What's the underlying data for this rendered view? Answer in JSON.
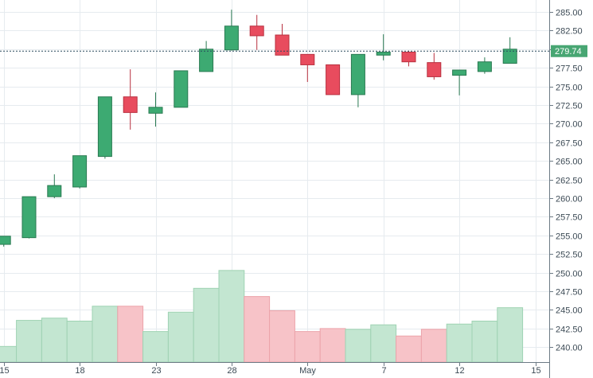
{
  "chart_data": {
    "type": "candlestick",
    "x_tick_labels": [
      "15",
      "18",
      "23",
      "28",
      "May",
      "7",
      "12",
      "15"
    ],
    "y_ticks": [
      "240.00",
      "242.50",
      "245.00",
      "247.50",
      "250.00",
      "252.50",
      "255.00",
      "257.50",
      "260.00",
      "262.50",
      "265.00",
      "267.50",
      "270.00",
      "272.50",
      "275.00",
      "277.50",
      "280.00",
      "282.50",
      "285.00"
    ],
    "ylim": [
      238.0,
      286.6
    ],
    "last_price": 279.74,
    "last_price_label": "279.74",
    "candles": [
      {
        "open": 253.8,
        "close": 254.9,
        "high": 254.9,
        "low": 253.5
      },
      {
        "open": 254.7,
        "close": 260.2,
        "high": 260.2,
        "low": 254.6
      },
      {
        "open": 260.2,
        "close": 261.7,
        "high": 263.2,
        "low": 260.0
      },
      {
        "open": 261.5,
        "close": 265.7,
        "high": 265.7,
        "low": 261.3
      },
      {
        "open": 265.6,
        "close": 273.6,
        "high": 273.6,
        "low": 265.3
      },
      {
        "open": 273.6,
        "close": 271.5,
        "high": 277.3,
        "low": 269.2
      },
      {
        "open": 271.4,
        "close": 272.2,
        "high": 274.2,
        "low": 269.6
      },
      {
        "open": 272.2,
        "close": 277.1,
        "high": 277.1,
        "low": 272.2
      },
      {
        "open": 277.0,
        "close": 280.0,
        "high": 281.1,
        "low": 277.0
      },
      {
        "open": 279.9,
        "close": 283.1,
        "high": 285.3,
        "low": 279.8
      },
      {
        "open": 283.1,
        "close": 281.8,
        "high": 284.6,
        "low": 279.9
      },
      {
        "open": 281.9,
        "close": 279.2,
        "high": 283.4,
        "low": 279.2
      },
      {
        "open": 279.3,
        "close": 277.9,
        "high": 279.3,
        "low": 275.6
      },
      {
        "open": 277.9,
        "close": 273.9,
        "high": 277.9,
        "low": 273.9
      },
      {
        "open": 273.9,
        "close": 279.3,
        "high": 279.3,
        "low": 272.2
      },
      {
        "open": 279.2,
        "close": 279.6,
        "high": 282.0,
        "low": 278.5
      },
      {
        "open": 279.6,
        "close": 278.3,
        "high": 279.8,
        "low": 277.7
      },
      {
        "open": 278.2,
        "close": 276.3,
        "high": 279.5,
        "low": 275.9
      },
      {
        "open": 276.5,
        "close": 277.2,
        "high": 277.2,
        "low": 273.8
      },
      {
        "open": 277.0,
        "close": 278.3,
        "high": 278.9,
        "low": 276.7
      },
      {
        "open": 278.1,
        "close": 280.0,
        "high": 281.6,
        "low": 278.1
      }
    ],
    "volumes": [
      240.1,
      243.6,
      243.9,
      243.5,
      245.5,
      245.5,
      242.1,
      244.7,
      247.9,
      250.3,
      246.8,
      244.9,
      242.1,
      242.5,
      242.4,
      243.0,
      241.5,
      242.4,
      243.1,
      243.5,
      245.3
    ],
    "up_color": "#3daa72",
    "down_color": "#e84c5e",
    "vol_up_color": "#c3e6d1",
    "vol_down_color": "#f7c3c8",
    "grid": true
  }
}
